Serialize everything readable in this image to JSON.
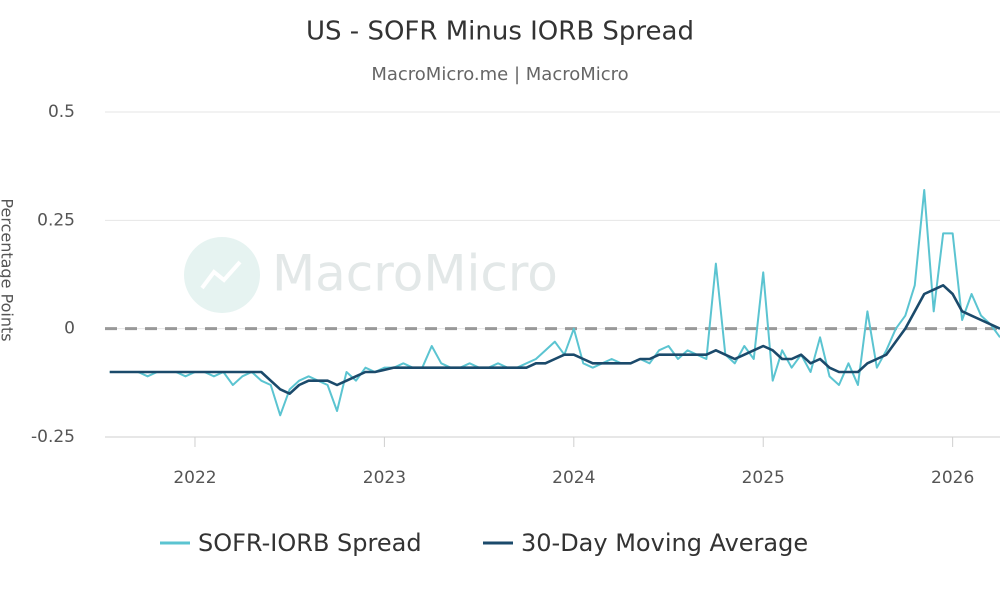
{
  "chart_data": {
    "type": "line",
    "title": "US - SOFR Minus IORB Spread",
    "subtitle": "MacroMicro.me | MacroMicro",
    "watermark": "MacroMicro",
    "y_label": "Percentage Points",
    "xlim": [
      2021.525,
      2026.25
    ],
    "xticks": [
      2022,
      2023,
      2024,
      2025,
      2026
    ],
    "ylim": [
      -0.25,
      0.5
    ],
    "yticks": [
      0.5,
      0.25,
      0,
      -0.25
    ],
    "grid": true,
    "reference_line": 0,
    "legend": "bottom",
    "x": [
      2021.55,
      2021.6,
      2021.65,
      2021.7,
      2021.75,
      2021.8,
      2021.85,
      2021.9,
      2021.95,
      2022.0,
      2022.05,
      2022.1,
      2022.15,
      2022.2,
      2022.25,
      2022.3,
      2022.35,
      2022.4,
      2022.45,
      2022.5,
      2022.55,
      2022.6,
      2022.65,
      2022.7,
      2022.75,
      2022.8,
      2022.85,
      2022.9,
      2022.95,
      2023.0,
      2023.05,
      2023.1,
      2023.15,
      2023.2,
      2023.25,
      2023.3,
      2023.35,
      2023.4,
      2023.45,
      2023.5,
      2023.55,
      2023.6,
      2023.65,
      2023.7,
      2023.75,
      2023.8,
      2023.85,
      2023.9,
      2023.95,
      2024.0,
      2024.05,
      2024.1,
      2024.15,
      2024.2,
      2024.25,
      2024.3,
      2024.35,
      2024.4,
      2024.45,
      2024.5,
      2024.55,
      2024.6,
      2024.65,
      2024.7,
      2024.75,
      2024.8,
      2024.85,
      2024.9,
      2024.95,
      2025.0,
      2025.05,
      2025.1,
      2025.15,
      2025.2,
      2025.25,
      2025.3,
      2025.35,
      2025.4,
      2025.45,
      2025.5,
      2025.55,
      2025.6,
      2025.65,
      2025.7,
      2025.75,
      2025.8,
      2025.85,
      2025.9,
      2025.95,
      2026.0,
      2026.05,
      2026.1,
      2026.15,
      2026.2,
      2026.25
    ],
    "series": [
      {
        "name": "SOFR-IORB Spread",
        "color": "#5bc4d1",
        "values": [
          -0.1,
          -0.1,
          -0.1,
          -0.1,
          -0.11,
          -0.1,
          -0.1,
          -0.1,
          -0.11,
          -0.1,
          -0.1,
          -0.11,
          -0.1,
          -0.13,
          -0.11,
          -0.1,
          -0.12,
          -0.13,
          -0.2,
          -0.14,
          -0.12,
          -0.11,
          -0.12,
          -0.13,
          -0.19,
          -0.1,
          -0.12,
          -0.09,
          -0.1,
          -0.09,
          -0.09,
          -0.08,
          -0.09,
          -0.09,
          -0.04,
          -0.08,
          -0.09,
          -0.09,
          -0.08,
          -0.09,
          -0.09,
          -0.08,
          -0.09,
          -0.09,
          -0.08,
          -0.07,
          -0.05,
          -0.03,
          -0.06,
          0.0,
          -0.08,
          -0.09,
          -0.08,
          -0.07,
          -0.08,
          -0.08,
          -0.07,
          -0.08,
          -0.05,
          -0.04,
          -0.07,
          -0.05,
          -0.06,
          -0.07,
          0.15,
          -0.06,
          -0.08,
          -0.04,
          -0.07,
          0.13,
          -0.12,
          -0.05,
          -0.09,
          -0.06,
          -0.1,
          -0.02,
          -0.11,
          -0.13,
          -0.08,
          -0.13,
          0.04,
          -0.09,
          -0.05,
          0.0,
          0.03,
          0.1,
          0.32,
          0.04,
          0.22,
          0.22,
          0.02,
          0.08,
          0.03,
          0.01,
          -0.02
        ]
      },
      {
        "name": "30-Day Moving Average",
        "color": "#1b4a6b",
        "values": [
          -0.1,
          -0.1,
          -0.1,
          -0.1,
          -0.1,
          -0.1,
          -0.1,
          -0.1,
          -0.1,
          -0.1,
          -0.1,
          -0.1,
          -0.1,
          -0.1,
          -0.1,
          -0.1,
          -0.1,
          -0.12,
          -0.14,
          -0.15,
          -0.13,
          -0.12,
          -0.12,
          -0.12,
          -0.13,
          -0.12,
          -0.11,
          -0.1,
          -0.1,
          -0.095,
          -0.09,
          -0.09,
          -0.09,
          -0.09,
          -0.09,
          -0.09,
          -0.09,
          -0.09,
          -0.09,
          -0.09,
          -0.09,
          -0.09,
          -0.09,
          -0.09,
          -0.09,
          -0.08,
          -0.08,
          -0.07,
          -0.06,
          -0.06,
          -0.07,
          -0.08,
          -0.08,
          -0.08,
          -0.08,
          -0.08,
          -0.07,
          -0.07,
          -0.06,
          -0.06,
          -0.06,
          -0.06,
          -0.06,
          -0.06,
          -0.05,
          -0.06,
          -0.07,
          -0.06,
          -0.05,
          -0.04,
          -0.05,
          -0.07,
          -0.07,
          -0.06,
          -0.08,
          -0.07,
          -0.09,
          -0.1,
          -0.1,
          -0.1,
          -0.08,
          -0.07,
          -0.06,
          -0.03,
          0.0,
          0.04,
          0.08,
          0.09,
          0.1,
          0.08,
          0.04,
          0.03,
          0.02,
          0.01,
          0.0
        ]
      }
    ]
  }
}
